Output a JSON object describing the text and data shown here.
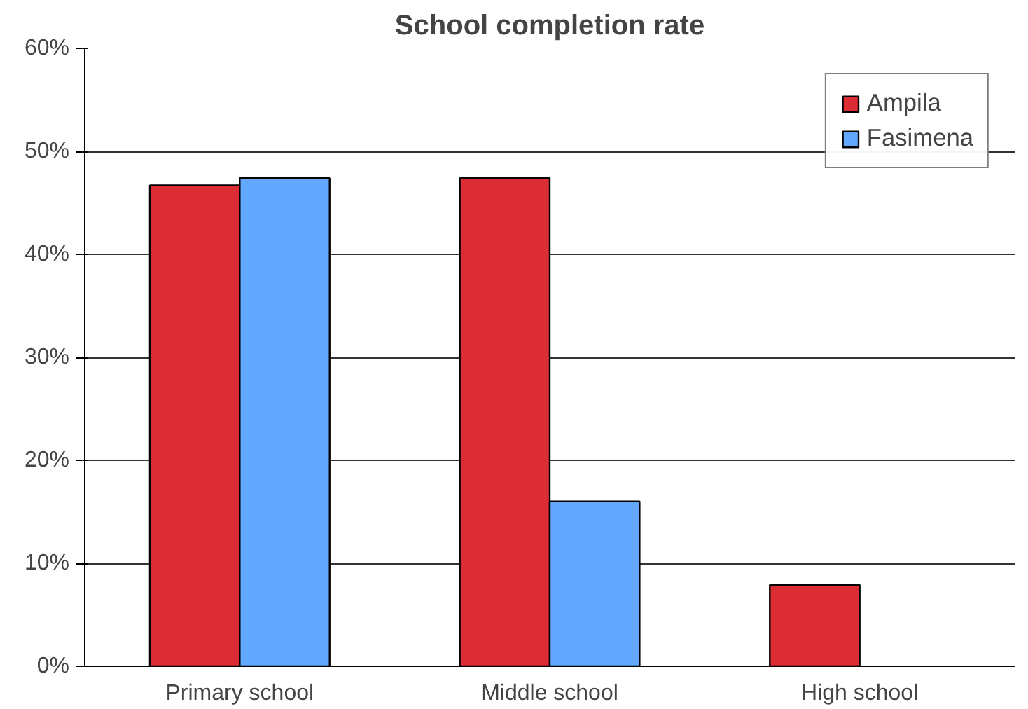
{
  "chart_data": {
    "type": "bar",
    "title": "School completion rate",
    "categories": [
      "Primary school",
      "Middle school",
      "High school"
    ],
    "series": [
      {
        "name": "Ampila",
        "color": "#dc2c34",
        "values": [
          46.7,
          47.4,
          7.9
        ]
      },
      {
        "name": "Fasimena",
        "color": "#62a8ff",
        "values": [
          47.4,
          16.0,
          null
        ]
      }
    ],
    "ylim": [
      0,
      60
    ],
    "yticks": [
      {
        "value": 0,
        "label": "0%"
      },
      {
        "value": 10,
        "label": "10%"
      },
      {
        "value": 20,
        "label": "20%"
      },
      {
        "value": 30,
        "label": "30%"
      },
      {
        "value": 40,
        "label": "40%"
      },
      {
        "value": 50,
        "label": "50%"
      },
      {
        "value": 60,
        "label": "60%"
      }
    ],
    "grid": "y",
    "legend": "top right"
  }
}
